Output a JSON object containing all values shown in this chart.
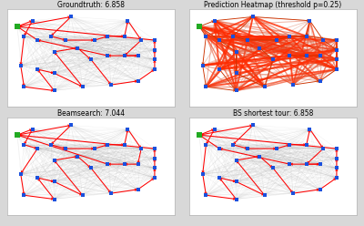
{
  "titles": [
    "Groundtruth: 6.858",
    "Prediction Heatmap (threshold p=0.25)",
    "Beamsearch: 7.044",
    "BS shortest tour: 6.858"
  ],
  "depot_idx": 0,
  "node_color": "#1a50dd",
  "depot_color": "#22aa22",
  "title_fontsize": 5.5,
  "fig_bg": "#d8d8d8",
  "panel_bg": "#ffffff"
}
